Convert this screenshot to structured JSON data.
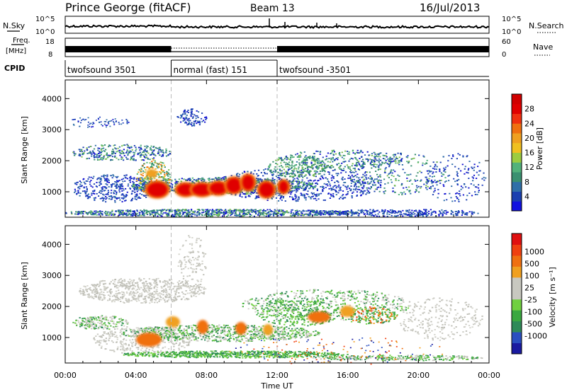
{
  "header": {
    "station": "Prince George (fitACF)",
    "beam": "Beam 13",
    "date": "16/Jul/2013"
  },
  "strip": {
    "nsky_label": "N.Sky",
    "nsky_ticks": [
      "10^5",
      "10^0"
    ],
    "nsearch_label": "N.Search",
    "nsearch_ticks": [
      "10^5",
      "10^0"
    ],
    "freq_label": "Freq.",
    "freq_unit": "[MHz]",
    "freq_ticks": [
      "18",
      "8"
    ],
    "nave_label": "Nave",
    "nave_ticks": [
      "60",
      "0"
    ],
    "cpid_label": "CPID",
    "cpid_segments": [
      {
        "label": "twofsound 3501",
        "start_h": 0,
        "end_h": 6
      },
      {
        "label": "normal (fast) 151",
        "start_h": 6,
        "end_h": 12
      },
      {
        "label": "twofsound -3501",
        "start_h": 12,
        "end_h": 24
      }
    ]
  },
  "x_axis": {
    "title": "Time UT",
    "ticks": [
      "00:00",
      "04:00",
      "08:00",
      "12:00",
      "16:00",
      "20:00",
      "00:00"
    ]
  },
  "chart_data": [
    {
      "type": "heatmap",
      "panel": "power",
      "ylabel": "Slant Range [km]",
      "y_ticks": [
        "1000",
        "2000",
        "3000",
        "4000"
      ],
      "xlim": [
        0,
        24
      ],
      "ylim": [
        180,
        4600
      ],
      "colorbar": {
        "label": "Power [dB]",
        "ticks": [
          "4",
          "8",
          "12",
          "16",
          "20",
          "24",
          "28"
        ],
        "colors": [
          "#1010e0",
          "#1a3fb0",
          "#2f6fa8",
          "#3a9070",
          "#52b27a",
          "#9ccc40",
          "#f0c020",
          "#f0a020",
          "#f07010",
          "#f03010",
          "#e00000",
          "#d00000"
        ]
      }
    },
    {
      "type": "heatmap",
      "panel": "velocity",
      "ylabel": "Slant Range [km]",
      "y_ticks": [
        "1000",
        "2000",
        "3000",
        "4000"
      ],
      "xlim": [
        0,
        24
      ],
      "ylim": [
        180,
        4600
      ],
      "colorbar": {
        "label": "Velocity [m s⁻¹]",
        "ticks": [
          "1000",
          "500",
          "100",
          "25",
          "-25",
          "-100",
          "-500",
          "-1000"
        ],
        "colors": [
          "#1a1aa0",
          "#2a4fc0",
          "#2e8a58",
          "#3aa840",
          "#70d040",
          "#c8c8c0",
          "#c8c8c0",
          "#f0a020",
          "#f07010",
          "#f04010",
          "#e01010"
        ]
      }
    }
  ]
}
